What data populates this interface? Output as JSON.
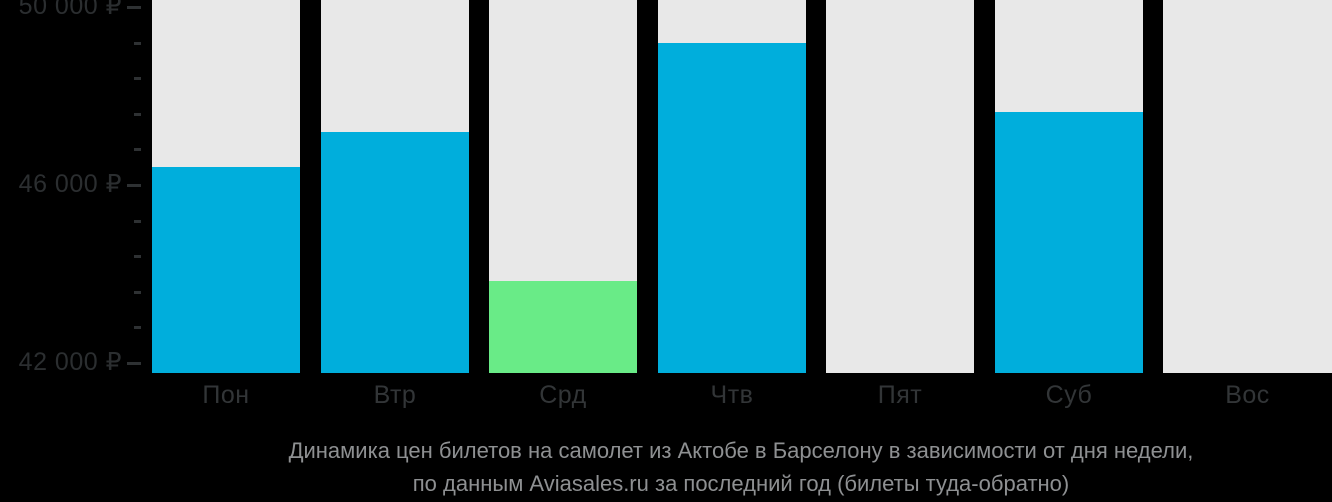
{
  "chart_data": {
    "type": "bar",
    "title": "Динамика цен билетов на самолет из Актобе в Барселону в зависимости от дня недели,",
    "subtitle": "по данным Aviasales.ru за последний год (билеты туда-обратно)",
    "categories": [
      "Пон",
      "Втр",
      "Срд",
      "Чтв",
      "Пят",
      "Суб",
      "Вос"
    ],
    "values": [
      46400,
      47200,
      43850,
      49200,
      null,
      47650,
      null
    ],
    "bar_colors": [
      "#00aedc",
      "#00aedc",
      "#69eb87",
      "#00aedc",
      "#00aedc",
      "#00aedc",
      "#00aedc"
    ],
    "min_value_index": 2,
    "column_bg_color": "#e8e8e8",
    "background_color": "#000000",
    "accent_blue": "#00aedc",
    "accent_green": "#69eb87",
    "currency": "₽",
    "ylabel": "",
    "xlabel": "",
    "ylim": [
      41775,
      50160
    ],
    "y_major_ticks": [
      {
        "value": 50000,
        "label": "50 000 ₽"
      },
      {
        "value": 46000,
        "label": "46 000 ₽"
      },
      {
        "value": 42000,
        "label": "42 000 ₽"
      }
    ],
    "y_minor_tick_values": [
      49200,
      48400,
      47600,
      46800,
      45200,
      44400,
      43600,
      42800
    ],
    "grid": "off",
    "legend": "none"
  }
}
